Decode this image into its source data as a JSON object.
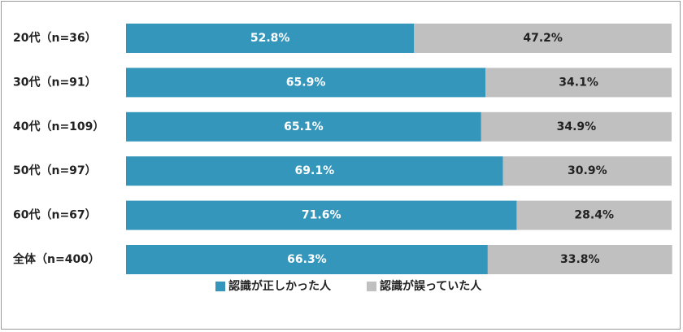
{
  "chart_data": {
    "type": "bar",
    "orientation": "horizontal",
    "stacked": true,
    "normalized_100": true,
    "categories": [
      "20代（n=36）",
      "30代（n=91）",
      "40代（n=109）",
      "50代（n=97）",
      "60代（n=67）",
      "全体（n=400）"
    ],
    "series": [
      {
        "name": "認識が正しかった人",
        "color": "#3596bc",
        "values": [
          52.8,
          65.9,
          65.1,
          69.1,
          71.6,
          66.3
        ],
        "labels": [
          "52.8%",
          "65.9%",
          "65.1%",
          "69.1%",
          "71.6%",
          "66.3%"
        ],
        "label_color": "#ffffff"
      },
      {
        "name": "認識が誤っていた人",
        "color": "#c0c0c0",
        "values": [
          47.2,
          34.1,
          34.9,
          30.9,
          28.4,
          33.8
        ],
        "labels": [
          "47.2%",
          "34.1%",
          "34.9%",
          "30.9%",
          "28.4%",
          "33.8%"
        ],
        "label_color": "#222222"
      }
    ],
    "xlim": [
      0,
      100
    ],
    "grid": false,
    "legend_position": "bottom"
  }
}
